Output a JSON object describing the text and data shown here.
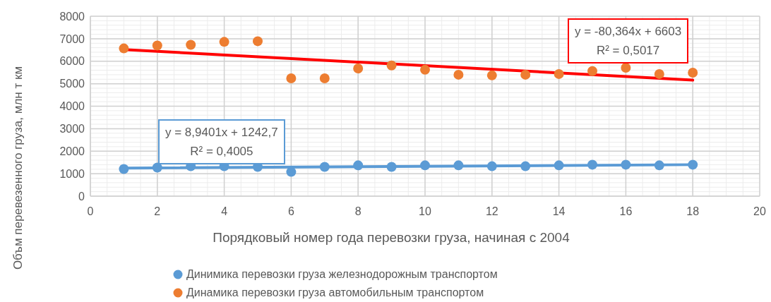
{
  "chart_data": {
    "type": "scatter",
    "xlabel": "Порядковый номер года перевозки груза, начиная с 2004",
    "ylabel": "Объм перевезенного груза, млн т км",
    "x": [
      1,
      2,
      3,
      4,
      5,
      6,
      7,
      8,
      9,
      10,
      11,
      12,
      13,
      14,
      15,
      16,
      17,
      18
    ],
    "series": [
      {
        "name": "Динимика перевозки груза железнодорожным транспортом",
        "color": "#5b9bd5",
        "values": [
          1210,
          1270,
          1330,
          1330,
          1300,
          1080,
          1300,
          1370,
          1300,
          1370,
          1370,
          1330,
          1330,
          1370,
          1400,
          1400,
          1370,
          1400
        ]
      },
      {
        "name": "Динамика перевозки груза автомобильным транспортом",
        "color": "#ed7d31",
        "values": [
          6570,
          6700,
          6730,
          6860,
          6890,
          5240,
          5240,
          5680,
          5810,
          5620,
          5400,
          5370,
          5400,
          5430,
          5560,
          5710,
          5430,
          5490
        ]
      },
      {
        "type": "line",
        "color": "#5b9bd5",
        "marker": "none",
        "values": [
          1250,
          null,
          null,
          null,
          null,
          null,
          null,
          null,
          null,
          null,
          null,
          null,
          null,
          null,
          null,
          null,
          null,
          1400
        ]
      },
      {
        "type": "line",
        "color": "#ff0000",
        "marker": "none",
        "values": [
          6520,
          null,
          null,
          null,
          null,
          null,
          null,
          null,
          null,
          null,
          null,
          null,
          null,
          null,
          null,
          null,
          null,
          5160
        ]
      }
    ],
    "annotations": [
      "y = -80,364x + 6603\nR² = 0,5017",
      "y = 8,9401x + 1242,7\nR² = 0,4005"
    ],
    "xlim": [
      0,
      20
    ],
    "xticks": [
      0,
      2,
      4,
      6,
      8,
      10,
      12,
      14,
      16,
      18,
      20
    ],
    "ylim": [
      0,
      8000
    ],
    "yticks": [
      0,
      1000,
      2000,
      3000,
      4000,
      5000,
      6000,
      7000,
      8000
    ],
    "grid": true,
    "legend": "bottom",
    "marker": "circle"
  }
}
